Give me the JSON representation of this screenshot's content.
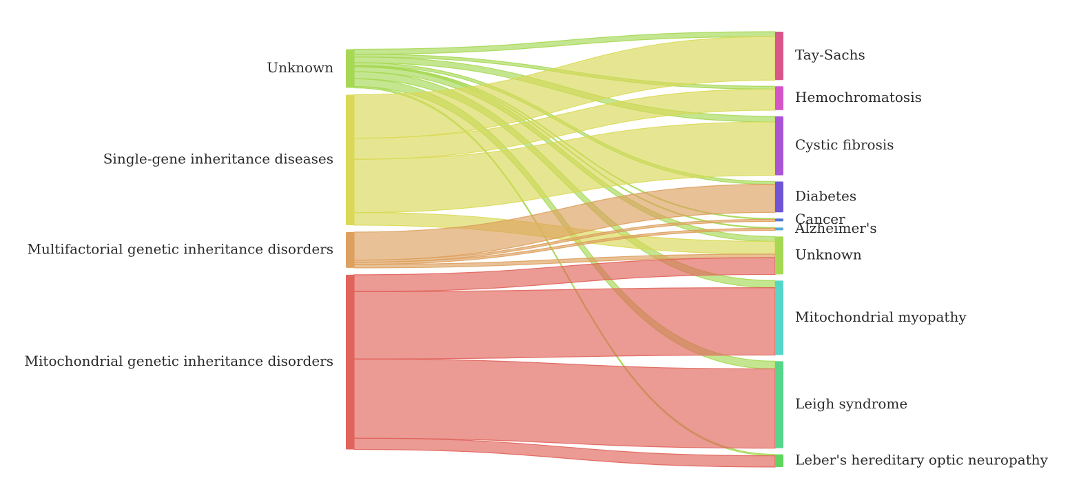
{
  "chart_data": {
    "type": "sankey",
    "sources": [
      {
        "name": "Unknown",
        "color": "#a6d854"
      },
      {
        "name": "Single-gene inheritance diseases",
        "color": "#d9d957"
      },
      {
        "name": "Multifactorial genetic inheritance disorders",
        "color": "#dda05e"
      },
      {
        "name": "Mitochondrial genetic inheritance disorders",
        "color": "#e0645b"
      }
    ],
    "targets": [
      {
        "name": "Tay-Sachs",
        "color": "#d9558a"
      },
      {
        "name": "Hemochromatosis",
        "color": "#d455c9"
      },
      {
        "name": "Cystic fibrosis",
        "color": "#aa55d6"
      },
      {
        "name": "Diabetes",
        "color": "#6f55d6"
      },
      {
        "name": "Cancer",
        "color": "#5578d6"
      },
      {
        "name": "Alzheimer's",
        "color": "#55aad6"
      },
      {
        "name": "Unknown",
        "color": "#a6d854"
      },
      {
        "name": "Mitochondrial myopathy",
        "color": "#55d6c9"
      },
      {
        "name": "Leigh syndrome",
        "color": "#55d68a"
      },
      {
        "name": "Leber's hereditary optic neuropathy",
        "color": "#5ed65e"
      }
    ],
    "links": [
      {
        "source": 0,
        "target": 0,
        "value": 7
      },
      {
        "source": 0,
        "target": 1,
        "value": 4
      },
      {
        "source": 0,
        "target": 2,
        "value": 8
      },
      {
        "source": 0,
        "target": 3,
        "value": 4
      },
      {
        "source": 0,
        "target": 4,
        "value": 1
      },
      {
        "source": 0,
        "target": 5,
        "value": 1
      },
      {
        "source": 0,
        "target": 6,
        "value": 7
      },
      {
        "source": 0,
        "target": 7,
        "value": 10
      },
      {
        "source": 0,
        "target": 8,
        "value": 11
      },
      {
        "source": 0,
        "target": 9,
        "value": 2
      },
      {
        "source": 1,
        "target": 0,
        "value": 62
      },
      {
        "source": 1,
        "target": 1,
        "value": 30
      },
      {
        "source": 1,
        "target": 2,
        "value": 76
      },
      {
        "source": 1,
        "target": 6,
        "value": 18
      },
      {
        "source": 2,
        "target": 3,
        "value": 40
      },
      {
        "source": 2,
        "target": 4,
        "value": 3
      },
      {
        "source": 2,
        "target": 5,
        "value": 3
      },
      {
        "source": 2,
        "target": 6,
        "value": 5
      },
      {
        "source": 3,
        "target": 6,
        "value": 24
      },
      {
        "source": 3,
        "target": 7,
        "value": 96
      },
      {
        "source": 3,
        "target": 8,
        "value": 113
      },
      {
        "source": 3,
        "target": 9,
        "value": 16
      }
    ]
  }
}
